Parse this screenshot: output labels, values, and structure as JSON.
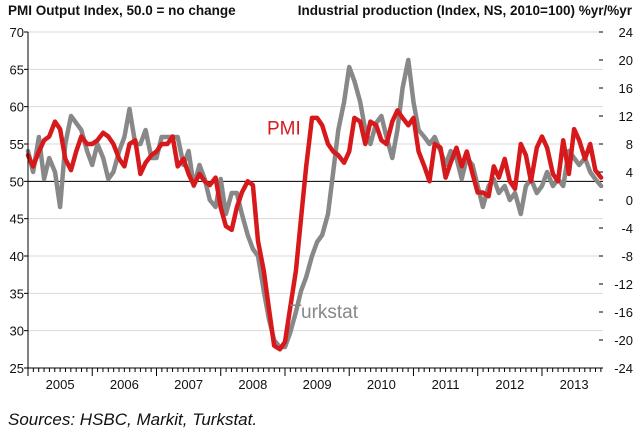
{
  "chart_data": {
    "type": "line",
    "left_axis_title": "PMI Output Index, 50.0 = no change",
    "right_axis_title": "Industrial production (Index, NS, 2010=100) %yr/%yr",
    "left_ylim": [
      25,
      70
    ],
    "left_ticks": [
      "25",
      "30",
      "35",
      "40",
      "45",
      "50",
      "55",
      "60",
      "65",
      "70"
    ],
    "right_ylim": [
      -24,
      24
    ],
    "right_ticks": [
      "-24",
      "-20",
      "-16",
      "-12",
      "-8",
      "-4",
      "0",
      "4",
      "8",
      "12",
      "16",
      "20",
      "24"
    ],
    "x_range": [
      2005.0,
      2013.95
    ],
    "year_labels": [
      "2005",
      "2006",
      "2007",
      "2008",
      "2009",
      "2010",
      "2011",
      "2012",
      "2013"
    ],
    "reference_line_left": 50,
    "colors": {
      "pmi": "#d7191c",
      "turkstat": "#888888",
      "axis": "#000000",
      "grid": "#d9d9d9"
    },
    "series": [
      {
        "name": "PMI",
        "axis": "left",
        "annotation": "PMI",
        "points": [
          [
            2005.0,
            53.5
          ],
          [
            2005.08,
            52.0
          ],
          [
            2005.17,
            54.0
          ],
          [
            2005.25,
            55.5
          ],
          [
            2005.33,
            56.0
          ],
          [
            2005.42,
            58.0
          ],
          [
            2005.5,
            57.0
          ],
          [
            2005.58,
            53.0
          ],
          [
            2005.67,
            51.5
          ],
          [
            2005.75,
            54.0
          ],
          [
            2005.83,
            56.0
          ],
          [
            2005.92,
            55.0
          ],
          [
            2006.0,
            55.0
          ],
          [
            2006.08,
            55.5
          ],
          [
            2006.17,
            56.5
          ],
          [
            2006.25,
            56.0
          ],
          [
            2006.33,
            55.0
          ],
          [
            2006.42,
            53.0
          ],
          [
            2006.5,
            52.0
          ],
          [
            2006.58,
            55.0
          ],
          [
            2006.67,
            55.5
          ],
          [
            2006.75,
            51.0
          ],
          [
            2006.83,
            52.5
          ],
          [
            2006.92,
            53.5
          ],
          [
            2007.0,
            54.0
          ],
          [
            2007.08,
            55.0
          ],
          [
            2007.17,
            55.0
          ],
          [
            2007.25,
            56.0
          ],
          [
            2007.33,
            52.0
          ],
          [
            2007.42,
            53.0
          ],
          [
            2007.5,
            51.0
          ],
          [
            2007.58,
            49.5
          ],
          [
            2007.67,
            51.0
          ],
          [
            2007.75,
            50.0
          ],
          [
            2007.83,
            49.5
          ],
          [
            2007.92,
            50.5
          ],
          [
            2008.0,
            46.5
          ],
          [
            2008.08,
            44.0
          ],
          [
            2008.17,
            43.5
          ],
          [
            2008.25,
            46.5
          ],
          [
            2008.33,
            48.5
          ],
          [
            2008.42,
            50.0
          ],
          [
            2008.5,
            49.5
          ],
          [
            2008.58,
            42.0
          ],
          [
            2008.67,
            38.0
          ],
          [
            2008.75,
            33.0
          ],
          [
            2008.83,
            28.0
          ],
          [
            2008.92,
            27.5
          ],
          [
            2009.0,
            28.5
          ],
          [
            2009.08,
            33.0
          ],
          [
            2009.17,
            38.0
          ],
          [
            2009.25,
            45.0
          ],
          [
            2009.33,
            52.0
          ],
          [
            2009.42,
            58.5
          ],
          [
            2009.5,
            58.5
          ],
          [
            2009.58,
            57.5
          ],
          [
            2009.67,
            55.0
          ],
          [
            2009.75,
            54.0
          ],
          [
            2009.83,
            53.5
          ],
          [
            2009.92,
            52.5
          ],
          [
            2010.0,
            54.0
          ],
          [
            2010.08,
            58.5
          ],
          [
            2010.17,
            58.0
          ],
          [
            2010.25,
            55.0
          ],
          [
            2010.33,
            58.0
          ],
          [
            2010.42,
            57.5
          ],
          [
            2010.5,
            55.5
          ],
          [
            2010.58,
            55.0
          ],
          [
            2010.67,
            58.0
          ],
          [
            2010.75,
            59.5
          ],
          [
            2010.83,
            58.5
          ],
          [
            2010.92,
            57.5
          ],
          [
            2011.0,
            58.5
          ],
          [
            2011.08,
            54.0
          ],
          [
            2011.17,
            52.0
          ],
          [
            2011.25,
            50.0
          ],
          [
            2011.33,
            55.0
          ],
          [
            2011.42,
            54.5
          ],
          [
            2011.5,
            50.5
          ],
          [
            2011.58,
            52.5
          ],
          [
            2011.67,
            54.5
          ],
          [
            2011.75,
            52.0
          ],
          [
            2011.83,
            54.0
          ],
          [
            2011.92,
            51.0
          ],
          [
            2012.0,
            48.5
          ],
          [
            2012.08,
            48.5
          ],
          [
            2012.17,
            48.0
          ],
          [
            2012.25,
            52.0
          ],
          [
            2012.33,
            50.5
          ],
          [
            2012.42,
            53.0
          ],
          [
            2012.5,
            50.0
          ],
          [
            2012.58,
            49.0
          ],
          [
            2012.67,
            55.0
          ],
          [
            2012.75,
            53.5
          ],
          [
            2012.83,
            50.0
          ],
          [
            2012.92,
            54.5
          ],
          [
            2013.0,
            56.0
          ],
          [
            2013.08,
            54.5
          ],
          [
            2013.17,
            51.0
          ],
          [
            2013.25,
            50.0
          ],
          [
            2013.33,
            55.5
          ],
          [
            2013.42,
            51.0
          ],
          [
            2013.5,
            57.0
          ],
          [
            2013.58,
            55.5
          ],
          [
            2013.67,
            53.0
          ],
          [
            2013.75,
            55.0
          ],
          [
            2013.83,
            51.5
          ],
          [
            2013.92,
            50.5
          ]
        ]
      },
      {
        "name": "Turkstat",
        "axis": "right",
        "annotation": "Turkstat",
        "points": [
          [
            2005.0,
            7.0
          ],
          [
            2005.08,
            4.0
          ],
          [
            2005.17,
            9.0
          ],
          [
            2005.25,
            3.0
          ],
          [
            2005.33,
            6.0
          ],
          [
            2005.42,
            4.0
          ],
          [
            2005.5,
            -1.0
          ],
          [
            2005.58,
            8.0
          ],
          [
            2005.67,
            12.0
          ],
          [
            2005.75,
            11.0
          ],
          [
            2005.83,
            10.0
          ],
          [
            2005.92,
            7.0
          ],
          [
            2006.0,
            5.0
          ],
          [
            2006.08,
            8.0
          ],
          [
            2006.17,
            6.0
          ],
          [
            2006.25,
            3.0
          ],
          [
            2006.33,
            4.0
          ],
          [
            2006.42,
            7.0
          ],
          [
            2006.5,
            9.0
          ],
          [
            2006.58,
            13.0
          ],
          [
            2006.67,
            8.0
          ],
          [
            2006.75,
            8.0
          ],
          [
            2006.83,
            10.0
          ],
          [
            2006.92,
            6.0
          ],
          [
            2007.0,
            6.0
          ],
          [
            2007.08,
            9.0
          ],
          [
            2007.17,
            9.0
          ],
          [
            2007.25,
            9.0
          ],
          [
            2007.33,
            9.0
          ],
          [
            2007.42,
            5.0
          ],
          [
            2007.5,
            7.0
          ],
          [
            2007.58,
            2.0
          ],
          [
            2007.67,
            5.0
          ],
          [
            2007.75,
            3.0
          ],
          [
            2007.83,
            0.0
          ],
          [
            2007.92,
            -1.0
          ],
          [
            2008.0,
            3.0
          ],
          [
            2008.08,
            -2.0
          ],
          [
            2008.17,
            1.0
          ],
          [
            2008.25,
            1.0
          ],
          [
            2008.33,
            -2.0
          ],
          [
            2008.42,
            -5.0
          ],
          [
            2008.5,
            -7.0
          ],
          [
            2008.58,
            -8.0
          ],
          [
            2008.67,
            -13.0
          ],
          [
            2008.75,
            -17.0
          ],
          [
            2008.83,
            -20.0
          ],
          [
            2008.92,
            -21.0
          ],
          [
            2009.0,
            -21.0
          ],
          [
            2009.08,
            -19.0
          ],
          [
            2009.17,
            -16.0
          ],
          [
            2009.25,
            -13.0
          ],
          [
            2009.33,
            -11.0
          ],
          [
            2009.42,
            -8.0
          ],
          [
            2009.5,
            -6.0
          ],
          [
            2009.58,
            -5.0
          ],
          [
            2009.67,
            -2.0
          ],
          [
            2009.75,
            4.0
          ],
          [
            2009.83,
            10.0
          ],
          [
            2009.92,
            14.0
          ],
          [
            2010.0,
            19.0
          ],
          [
            2010.08,
            17.0
          ],
          [
            2010.17,
            14.0
          ],
          [
            2010.25,
            10.0
          ],
          [
            2010.33,
            8.0
          ],
          [
            2010.42,
            11.0
          ],
          [
            2010.5,
            12.0
          ],
          [
            2010.58,
            9.0
          ],
          [
            2010.67,
            6.0
          ],
          [
            2010.75,
            10.0
          ],
          [
            2010.83,
            16.0
          ],
          [
            2010.92,
            20.0
          ],
          [
            2011.0,
            14.0
          ],
          [
            2011.08,
            10.0
          ],
          [
            2011.17,
            9.0
          ],
          [
            2011.25,
            8.0
          ],
          [
            2011.33,
            9.0
          ],
          [
            2011.42,
            7.0
          ],
          [
            2011.5,
            5.0
          ],
          [
            2011.58,
            7.0
          ],
          [
            2011.67,
            6.0
          ],
          [
            2011.75,
            3.0
          ],
          [
            2011.83,
            6.0
          ],
          [
            2011.92,
            5.0
          ],
          [
            2012.0,
            2.0
          ],
          [
            2012.08,
            -1.0
          ],
          [
            2012.17,
            2.0
          ],
          [
            2012.25,
            3.0
          ],
          [
            2012.33,
            1.0
          ],
          [
            2012.42,
            2.0
          ],
          [
            2012.5,
            0.0
          ],
          [
            2012.58,
            1.0
          ],
          [
            2012.67,
            -2.0
          ],
          [
            2012.75,
            2.0
          ],
          [
            2012.83,
            3.0
          ],
          [
            2012.92,
            1.0
          ],
          [
            2013.0,
            2.0
          ],
          [
            2013.08,
            4.0
          ],
          [
            2013.17,
            2.0
          ],
          [
            2013.25,
            3.0
          ],
          [
            2013.33,
            2.0
          ],
          [
            2013.42,
            7.0
          ],
          [
            2013.5,
            6.0
          ],
          [
            2013.58,
            5.0
          ],
          [
            2013.67,
            6.0
          ],
          [
            2013.75,
            4.0
          ],
          [
            2013.83,
            3.0
          ],
          [
            2013.92,
            2.0
          ]
        ]
      }
    ]
  },
  "sources": "Sources: HSBC, Markit, Turkstat."
}
